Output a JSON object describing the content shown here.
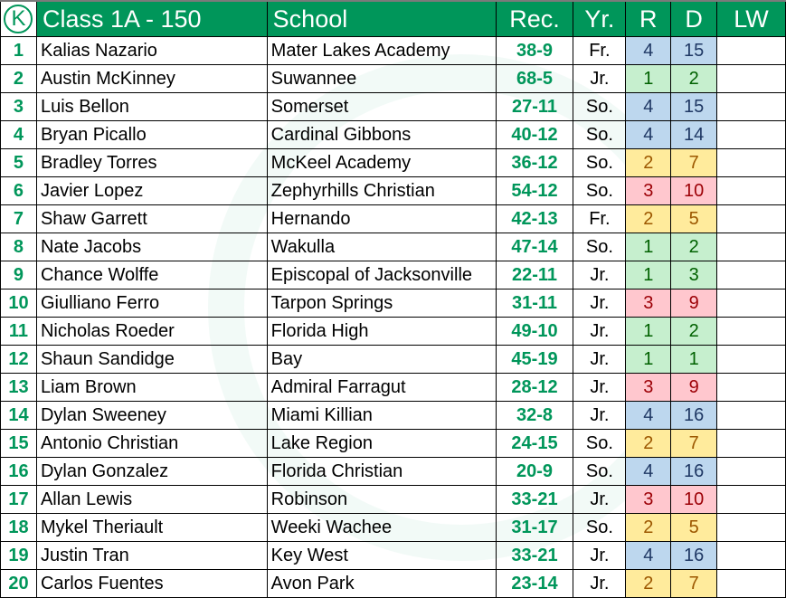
{
  "header": {
    "logo_letter": "K",
    "title": "Class 1A - 150",
    "school": "School",
    "rec": "Rec.",
    "yr": "Yr.",
    "r": "R",
    "d": "D",
    "lw": "LW"
  },
  "colors": {
    "header_green": "#00965a",
    "rank_green": "#00965a"
  },
  "rows": [
    {
      "rank": "1",
      "name": "Kalias Nazario",
      "school": "Mater Lakes Academy",
      "rec": "38-9",
      "yr": "Fr.",
      "r": "4",
      "d": "15",
      "tone": "blue",
      "lw": ""
    },
    {
      "rank": "2",
      "name": "Austin McKinney",
      "school": "Suwannee",
      "rec": "68-5",
      "yr": "Jr.",
      "r": "1",
      "d": "2",
      "tone": "green",
      "lw": ""
    },
    {
      "rank": "3",
      "name": "Luis Bellon",
      "school": "Somerset",
      "rec": "27-11",
      "yr": "So.",
      "r": "4",
      "d": "15",
      "tone": "blue",
      "lw": ""
    },
    {
      "rank": "4",
      "name": "Bryan Picallo",
      "school": "Cardinal Gibbons",
      "rec": "40-12",
      "yr": "So.",
      "r": "4",
      "d": "14",
      "tone": "blue",
      "lw": ""
    },
    {
      "rank": "5",
      "name": "Bradley Torres",
      "school": "McKeel Academy",
      "rec": "36-12",
      "yr": "So.",
      "r": "2",
      "d": "7",
      "tone": "yellow",
      "lw": ""
    },
    {
      "rank": "6",
      "name": "Javier Lopez",
      "school": "Zephyrhills Christian",
      "rec": "54-12",
      "yr": "So.",
      "r": "3",
      "d": "10",
      "tone": "red",
      "lw": ""
    },
    {
      "rank": "7",
      "name": "Shaw Garrett",
      "school": "Hernando",
      "rec": "42-13",
      "yr": "Fr.",
      "r": "2",
      "d": "5",
      "tone": "yellow",
      "lw": ""
    },
    {
      "rank": "8",
      "name": "Nate Jacobs",
      "school": "Wakulla",
      "rec": "47-14",
      "yr": "So.",
      "r": "1",
      "d": "2",
      "tone": "green",
      "lw": ""
    },
    {
      "rank": "9",
      "name": "Chance Wolffe",
      "school": "Episcopal of Jacksonville",
      "rec": "22-11",
      "yr": "Jr.",
      "r": "1",
      "d": "3",
      "tone": "green",
      "lw": ""
    },
    {
      "rank": "10",
      "name": "Giulliano Ferro",
      "school": "Tarpon Springs",
      "rec": "31-11",
      "yr": "Jr.",
      "r": "3",
      "d": "9",
      "tone": "red",
      "lw": ""
    },
    {
      "rank": "11",
      "name": "Nicholas Roeder",
      "school": "Florida High",
      "rec": "49-10",
      "yr": "Jr.",
      "r": "1",
      "d": "2",
      "tone": "green",
      "lw": ""
    },
    {
      "rank": "12",
      "name": "Shaun Sandidge",
      "school": "Bay",
      "rec": "45-19",
      "yr": "Jr.",
      "r": "1",
      "d": "1",
      "tone": "green",
      "lw": ""
    },
    {
      "rank": "13",
      "name": "Liam Brown",
      "school": "Admiral Farragut",
      "rec": "28-12",
      "yr": "Jr.",
      "r": "3",
      "d": "9",
      "tone": "red",
      "lw": ""
    },
    {
      "rank": "14",
      "name": "Dylan Sweeney",
      "school": "Miami Killian",
      "rec": "32-8",
      "yr": "Jr.",
      "r": "4",
      "d": "16",
      "tone": "blue",
      "lw": ""
    },
    {
      "rank": "15",
      "name": "Antonio Christian",
      "school": "Lake Region",
      "rec": "24-15",
      "yr": "So.",
      "r": "2",
      "d": "7",
      "tone": "yellow",
      "lw": ""
    },
    {
      "rank": "16",
      "name": "Dylan Gonzalez",
      "school": "Florida Christian",
      "rec": "20-9",
      "yr": "So.",
      "r": "4",
      "d": "16",
      "tone": "blue",
      "lw": ""
    },
    {
      "rank": "17",
      "name": "Allan Lewis",
      "school": "Robinson",
      "rec": "33-21",
      "yr": "Jr.",
      "r": "3",
      "d": "10",
      "tone": "red",
      "lw": ""
    },
    {
      "rank": "18",
      "name": "Mykel Theriault",
      "school": "Weeki Wachee",
      "rec": "31-17",
      "yr": "So.",
      "r": "2",
      "d": "5",
      "tone": "yellow",
      "lw": ""
    },
    {
      "rank": "19",
      "name": "Justin Tran",
      "school": "Key West",
      "rec": "33-21",
      "yr": "Jr.",
      "r": "4",
      "d": "16",
      "tone": "blue",
      "lw": ""
    },
    {
      "rank": "20",
      "name": "Carlos Fuentes",
      "school": "Avon Park",
      "rec": "23-14",
      "yr": "Jr.",
      "r": "2",
      "d": "7",
      "tone": "yellow",
      "lw": ""
    }
  ]
}
